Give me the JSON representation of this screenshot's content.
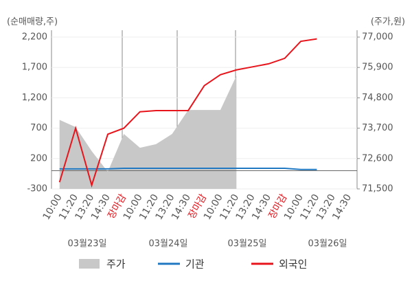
{
  "chart_data": {
    "type": "line",
    "y_label": "(순매매량,주)",
    "y2_label": "(주가,원)",
    "categories": [
      "10:00",
      "11:20",
      "13:20",
      "14:30",
      "장마감",
      "10:00",
      "11:20",
      "13:20",
      "14:30",
      "장마감",
      "10:00",
      "11:20",
      "13:20",
      "14:30",
      "장마감",
      "10:00",
      "11:20",
      "13:20",
      "14:30"
    ],
    "highlight": {
      "indices": [
        4,
        9,
        14
      ],
      "color": "#e8141b"
    },
    "dates": [
      "03월23일",
      "03월24일",
      "03월25일",
      "03월26일"
    ],
    "series": [
      {
        "name": "주가",
        "type": "area",
        "axis": "y2",
        "color": "#c8c8c8",
        "values": [
          74000,
          73740,
          72870,
          72120,
          73490,
          72990,
          73120,
          73490,
          74360,
          74360,
          74360,
          75600,
          null,
          null,
          null,
          null,
          null,
          null,
          null
        ]
      },
      {
        "name": "기관",
        "color": "#1f78c1",
        "values": [
          30,
          30,
          30,
          30,
          40,
          40,
          40,
          40,
          40,
          40,
          40,
          40,
          40,
          40,
          40,
          20,
          20,
          null,
          null
        ]
      },
      {
        "name": "외국인",
        "color": "#e8141b",
        "values": [
          -190,
          700,
          -240,
          600,
          700,
          970,
          990,
          990,
          990,
          1400,
          1580,
          1660,
          1710,
          1760,
          1850,
          2130,
          2170,
          null,
          null
        ]
      }
    ],
    "ylim": [
      -300,
      2200
    ],
    "yticks": [
      {
        "value": 2200,
        "label": "2,200"
      },
      {
        "value": 1700,
        "label": "1,700"
      },
      {
        "value": 1200,
        "label": "1,200"
      },
      700,
      200,
      -300
    ],
    "y2lim": [
      71500,
      77000
    ],
    "y2ticks": [
      {
        "value": 77000,
        "label": "77,000"
      },
      {
        "value": 75900,
        "label": "75,900"
      },
      {
        "value": 74800,
        "label": "74,800"
      },
      {
        "value": 73700,
        "label": "73,700"
      },
      {
        "value": 72600,
        "label": "72,600"
      },
      {
        "value": 71500,
        "label": "71,500"
      }
    ],
    "grid": true
  }
}
